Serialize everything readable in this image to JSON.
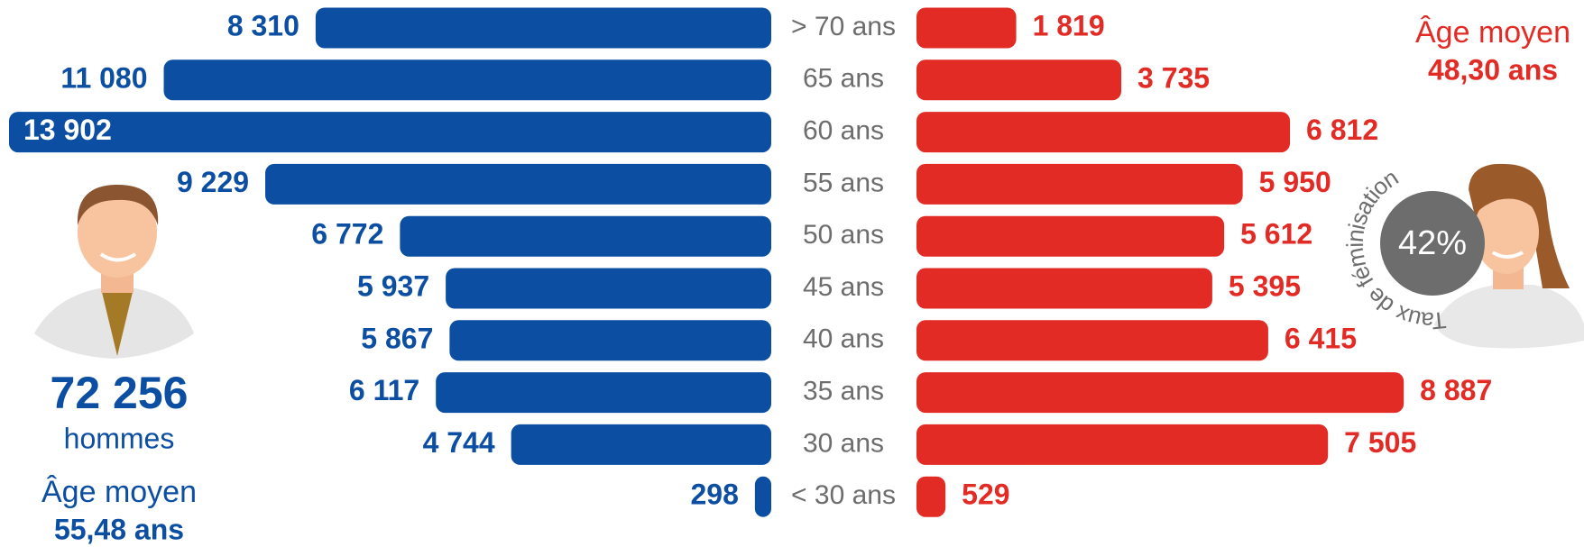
{
  "chart_data": {
    "type": "bar",
    "categories": [
      "> 70 ans",
      "65 ans",
      "60 ans",
      "55 ans",
      "50 ans",
      "45 ans",
      "40 ans",
      "35 ans",
      "30 ans",
      "< 30 ans"
    ],
    "series": [
      {
        "name": "hommes",
        "color": "#0b4ea2",
        "values": [
          8310,
          11080,
          13902,
          9229,
          6772,
          5937,
          5867,
          6117,
          4744,
          298
        ],
        "value_labels": [
          "8 310",
          "11 080",
          "13 902",
          "9 229",
          "6 772",
          "5 937",
          "5 867",
          "6 117",
          "4 744",
          "298"
        ]
      },
      {
        "color": "#e32b25",
        "values": [
          1819,
          3735,
          6812,
          5950,
          5612,
          5395,
          6415,
          8887,
          7505,
          529
        ],
        "value_labels": [
          "1 819",
          "3 735",
          "6 812",
          "5 950",
          "5 612",
          "5 395",
          "6 415",
          "8 887",
          "7 505",
          "529"
        ]
      }
    ],
    "annotations": {
      "men_total": "72 256",
      "men_age_label": "Âge moyen",
      "men_age": "55,48 ans",
      "women_age_label": "Âge moyen",
      "women_age": "48,30 ans",
      "feminisation_rate": "42%",
      "feminisation_label": "Taux de féminisation"
    }
  }
}
